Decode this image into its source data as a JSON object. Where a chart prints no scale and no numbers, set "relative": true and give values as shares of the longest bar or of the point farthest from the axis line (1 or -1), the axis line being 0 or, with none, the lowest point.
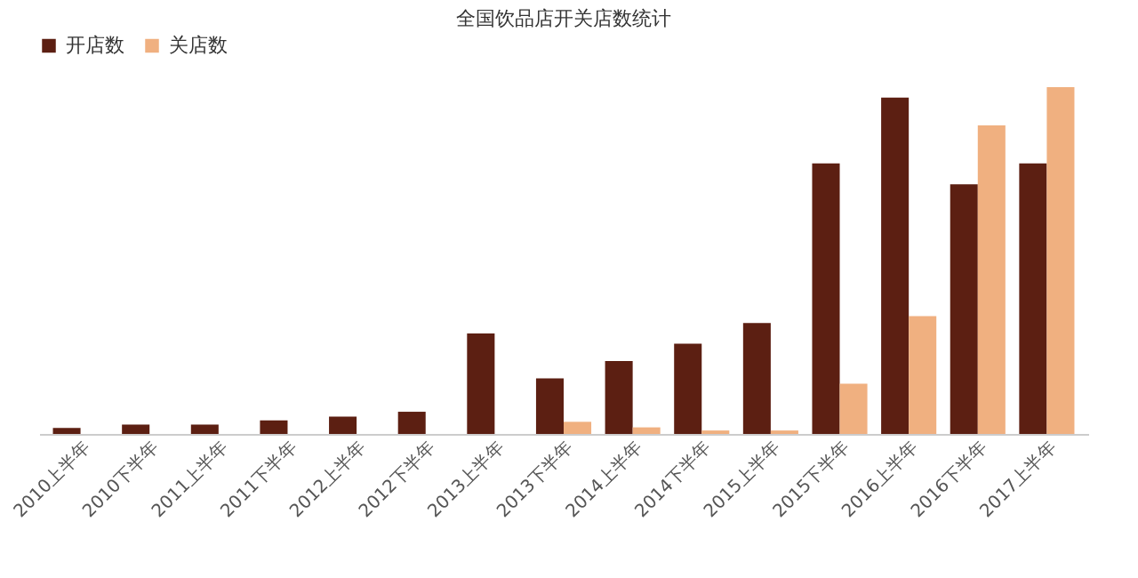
{
  "chart_data": {
    "type": "bar",
    "title": "全国饮品店开关店数统计",
    "relative": true,
    "legend": "top",
    "grid": false,
    "categories": [
      "2010上半年",
      "2010下半年",
      "2011上半年",
      "2011下半年",
      "2012上半年",
      "2012下半年",
      "2013上半年",
      "2013下半年",
      "2014上半年",
      "2014下半年",
      "2015上半年",
      "2015下半年",
      "2016上半年",
      "2016下半年",
      "2017上半年"
    ],
    "series": [
      {
        "name": "开店数",
        "color": "#5c1f12",
        "values": [
          0.017,
          0.027,
          0.027,
          0.039,
          0.05,
          0.064,
          0.29,
          0.16,
          0.21,
          0.26,
          0.32,
          0.78,
          0.97,
          0.72,
          0.78
        ]
      },
      {
        "name": "关店数",
        "color": "#f0b080",
        "values": [
          0,
          0,
          0,
          0,
          0,
          0,
          0,
          0.035,
          0.019,
          0.01,
          0.01,
          0.145,
          0.34,
          0.89,
          1
        ]
      }
    ]
  }
}
